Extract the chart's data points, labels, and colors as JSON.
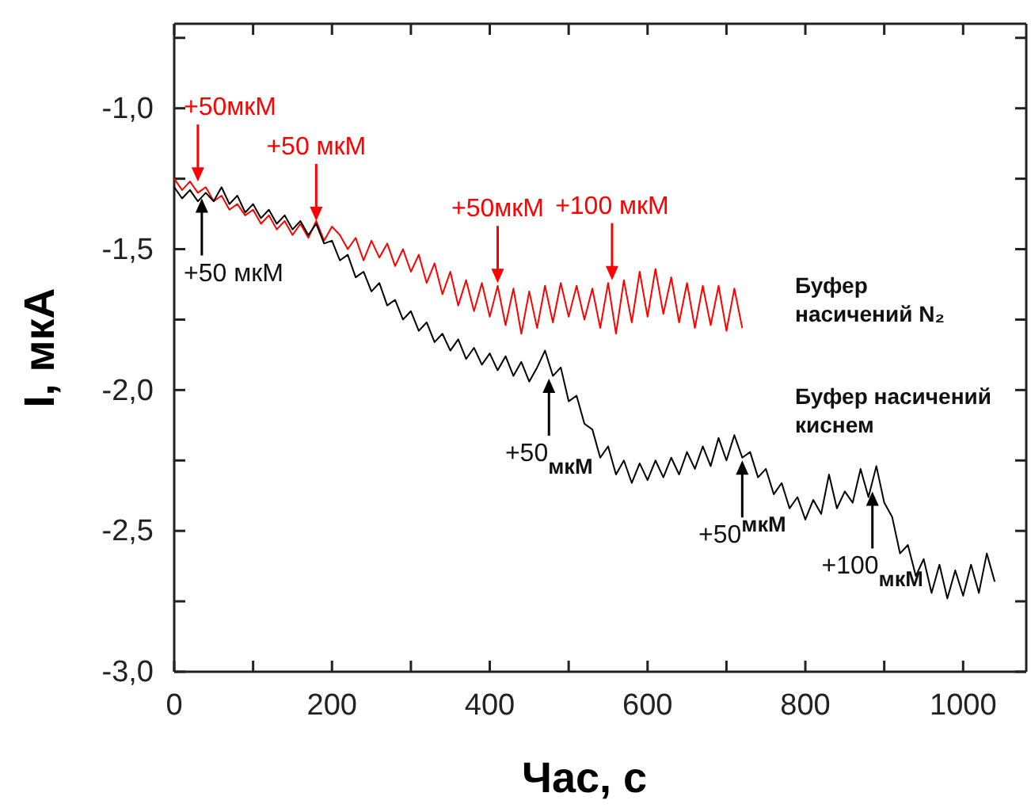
{
  "chart_data": {
    "type": "line",
    "xlabel": "Час, с",
    "ylabel": "I, мкА",
    "xlim": [
      0,
      1080
    ],
    "ylim": [
      -3.0,
      -0.7
    ],
    "xticks": [
      0,
      {
        "value": 100,
        "label": null
      },
      200,
      {
        "value": 300,
        "label": null
      },
      400,
      {
        "value": 500,
        "label": null
      },
      600,
      {
        "value": 700,
        "label": null
      },
      800,
      {
        "value": 900,
        "label": null
      },
      1000
    ],
    "yticks": [
      {
        "value": -3.0,
        "label": "-3,0"
      },
      {
        "value": -2.75,
        "label": null
      },
      {
        "value": -2.5,
        "label": "-2,5"
      },
      {
        "value": -2.25,
        "label": null
      },
      {
        "value": -2.0,
        "label": "-2,0"
      },
      {
        "value": -1.75,
        "label": null
      },
      {
        "value": -1.5,
        "label": "-1,5"
      },
      {
        "value": -1.25,
        "label": null
      },
      {
        "value": -1.0,
        "label": "-1,0"
      },
      {
        "value": -0.75,
        "label": null
      }
    ],
    "grid": false,
    "legend": false,
    "marker": "none",
    "line_style": "solid",
    "series": [
      {
        "name": "Буфер насичений N₂",
        "color": "#ff0000",
        "x": [
          0,
          10,
          20,
          30,
          40,
          50,
          60,
          70,
          80,
          90,
          100,
          110,
          120,
          130,
          140,
          150,
          160,
          170,
          180,
          190,
          200,
          210,
          220,
          230,
          240,
          250,
          260,
          270,
          280,
          290,
          300,
          310,
          320,
          330,
          340,
          350,
          360,
          370,
          380,
          390,
          400,
          410,
          420,
          430,
          440,
          450,
          460,
          470,
          480,
          490,
          500,
          510,
          520,
          530,
          540,
          550,
          560,
          570,
          580,
          590,
          600,
          610,
          620,
          630,
          640,
          650,
          660,
          670,
          680,
          690,
          700,
          710,
          720
        ],
        "values": [
          -1.25,
          -1.29,
          -1.26,
          -1.3,
          -1.28,
          -1.33,
          -1.31,
          -1.36,
          -1.34,
          -1.38,
          -1.36,
          -1.41,
          -1.38,
          -1.43,
          -1.4,
          -1.45,
          -1.41,
          -1.46,
          -1.4,
          -1.47,
          -1.42,
          -1.45,
          -1.5,
          -1.46,
          -1.54,
          -1.47,
          -1.53,
          -1.48,
          -1.56,
          -1.5,
          -1.58,
          -1.52,
          -1.62,
          -1.55,
          -1.66,
          -1.58,
          -1.7,
          -1.61,
          -1.72,
          -1.62,
          -1.74,
          -1.63,
          -1.77,
          -1.64,
          -1.8,
          -1.65,
          -1.78,
          -1.63,
          -1.76,
          -1.62,
          -1.74,
          -1.63,
          -1.75,
          -1.64,
          -1.78,
          -1.62,
          -1.8,
          -1.61,
          -1.76,
          -1.58,
          -1.74,
          -1.57,
          -1.73,
          -1.6,
          -1.76,
          -1.62,
          -1.78,
          -1.63,
          -1.77,
          -1.63,
          -1.79,
          -1.64,
          -1.78
        ]
      },
      {
        "name": "Буфер насичений киснем",
        "color": "#000000",
        "x": [
          0,
          10,
          20,
          30,
          40,
          50,
          60,
          70,
          80,
          90,
          100,
          110,
          120,
          130,
          140,
          150,
          160,
          170,
          180,
          190,
          200,
          210,
          220,
          230,
          240,
          250,
          260,
          270,
          280,
          290,
          300,
          310,
          320,
          330,
          340,
          350,
          360,
          370,
          380,
          390,
          400,
          410,
          420,
          430,
          440,
          450,
          460,
          470,
          480,
          490,
          500,
          510,
          520,
          530,
          540,
          550,
          560,
          570,
          580,
          590,
          600,
          610,
          620,
          630,
          640,
          650,
          660,
          670,
          680,
          690,
          700,
          710,
          720,
          730,
          740,
          750,
          760,
          770,
          780,
          790,
          800,
          810,
          820,
          830,
          840,
          850,
          860,
          870,
          880,
          890,
          900,
          910,
          920,
          930,
          940,
          950,
          960,
          970,
          980,
          990,
          1000,
          1010,
          1020,
          1030,
          1040
        ],
        "values": [
          -1.28,
          -1.32,
          -1.29,
          -1.33,
          -1.3,
          -1.33,
          -1.28,
          -1.34,
          -1.31,
          -1.37,
          -1.34,
          -1.39,
          -1.36,
          -1.41,
          -1.38,
          -1.43,
          -1.4,
          -1.45,
          -1.41,
          -1.48,
          -1.47,
          -1.54,
          -1.52,
          -1.6,
          -1.58,
          -1.65,
          -1.62,
          -1.7,
          -1.68,
          -1.75,
          -1.72,
          -1.79,
          -1.76,
          -1.83,
          -1.8,
          -1.86,
          -1.82,
          -1.89,
          -1.85,
          -1.91,
          -1.87,
          -1.93,
          -1.88,
          -1.95,
          -1.9,
          -1.97,
          -1.92,
          -1.86,
          -1.95,
          -1.92,
          -2.04,
          -2.02,
          -2.12,
          -2.14,
          -2.24,
          -2.2,
          -2.3,
          -2.25,
          -2.33,
          -2.26,
          -2.32,
          -2.25,
          -2.31,
          -2.24,
          -2.3,
          -2.22,
          -2.28,
          -2.2,
          -2.27,
          -2.17,
          -2.25,
          -2.16,
          -2.24,
          -2.22,
          -2.31,
          -2.28,
          -2.37,
          -2.33,
          -2.42,
          -2.38,
          -2.46,
          -2.39,
          -2.44,
          -2.3,
          -2.42,
          -2.36,
          -2.4,
          -2.28,
          -2.38,
          -2.27,
          -2.4,
          -2.45,
          -2.58,
          -2.55,
          -2.66,
          -2.6,
          -2.72,
          -2.62,
          -2.74,
          -2.64,
          -2.73,
          -2.62,
          -2.72,
          -2.58,
          -2.68
        ]
      }
    ],
    "annotations": [
      {
        "text": "+50мкМ",
        "x": 30,
        "y": -1.26
      },
      {
        "text": "+50 мкМ",
        "x": 180,
        "y": -1.4
      },
      {
        "text": "+50мкМ",
        "x": 410,
        "y": -1.62
      },
      {
        "text": "+100 мкМ",
        "x": 555,
        "y": -1.61
      },
      {
        "text": "+50 мкМ",
        "x": 35,
        "y": -1.32
      },
      {
        "text": "+50$_{мкМ}$",
        "x": 475,
        "y": -1.96
      },
      {
        "text": "+50$^{мкМ}$",
        "x": 720,
        "y": -2.25
      },
      {
        "text": "+100$_{мкМ}$",
        "x": 885,
        "y": -2.36
      }
    ]
  }
}
